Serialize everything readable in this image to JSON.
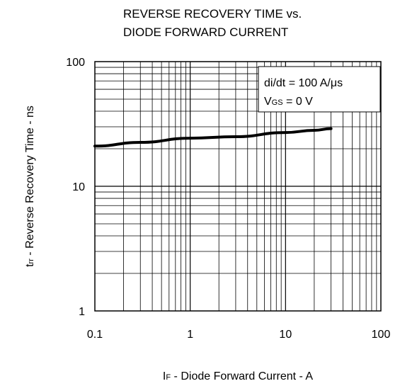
{
  "chart_data": {
    "type": "line",
    "title_lines": [
      "REVERSE RECOVERY TIME vs.",
      "DIODE FORWARD CURRENT"
    ],
    "xlabel": {
      "main": "I",
      "sub": "F",
      "rest": " - Diode Forward Current - A"
    },
    "ylabel": {
      "main": "t",
      "sub": "rr",
      "rest": " - Reverse Recovery Time - ns"
    },
    "x_scale": "log",
    "y_scale": "log",
    "xlim": [
      0.1,
      100
    ],
    "ylim": [
      1,
      100
    ],
    "x_ticks": [
      {
        "value": 0.1,
        "label": "0.1"
      },
      {
        "value": 1,
        "label": "1"
      },
      {
        "value": 10,
        "label": "10"
      },
      {
        "value": 100,
        "label": "100"
      }
    ],
    "y_ticks": [
      {
        "value": 1,
        "label": "1"
      },
      {
        "value": 10,
        "label": "10"
      },
      {
        "value": 100,
        "label": "100"
      }
    ],
    "grid": true,
    "legend_box": {
      "placement": "top-right",
      "line1": "di/dt = 100 A/μs",
      "line2": {
        "main": "V",
        "sub": "GS",
        "rest": " = 0 V"
      }
    },
    "series": [
      {
        "color": "#000000",
        "x": [
          0.1,
          0.3,
          1,
          3,
          10,
          20,
          30
        ],
        "y": [
          21,
          22.5,
          24.3,
          25,
          27,
          28.1,
          29
        ]
      }
    ]
  }
}
